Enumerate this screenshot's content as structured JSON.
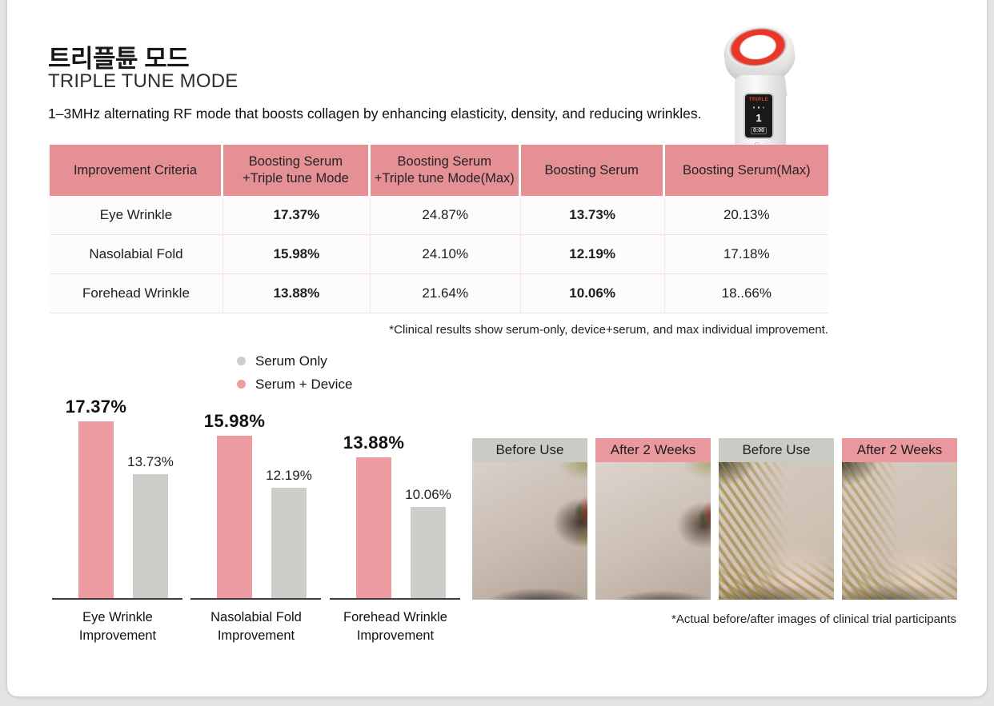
{
  "page": {
    "title_ko": "트리플튠 모드",
    "title_en": "TRIPLE TUNE MODE",
    "description": "1–3MHz alternating RF mode that boosts collagen by enhancing elasticity, density, and reducing wrinkles."
  },
  "device_screen": {
    "mode": "TRIPLE",
    "level": "1",
    "time": "0:00"
  },
  "table": {
    "headers": [
      "Improvement Criteria",
      "Boosting Serum\n+Triple tune Mode",
      "Boosting Serum\n+Triple tune Mode(Max)",
      "Boosting Serum",
      "Boosting Serum(Max)"
    ],
    "rows": [
      {
        "criteria": "Eye Wrinkle",
        "values": [
          "17.37%",
          "24.87%",
          "13.73%",
          "20.13%"
        ]
      },
      {
        "criteria": "Nasolabial Fold",
        "values": [
          "15.98%",
          "24.10%",
          "12.19%",
          "17.18%"
        ]
      },
      {
        "criteria": "Forehead Wrinkle",
        "values": [
          "13.88%",
          "21.64%",
          "10.06%",
          "18..66%"
        ]
      }
    ],
    "footnote": "*Clinical results show serum-only, device+serum, and max individual improvement."
  },
  "legend": {
    "serum_only": "Serum Only",
    "serum_device": "Serum + Device"
  },
  "chart_data": {
    "type": "bar",
    "title": "",
    "value_suffix": "%",
    "ylim": [
      0,
      18
    ],
    "grid": false,
    "legend_position": "top",
    "series": [
      {
        "name": "Serum + Device",
        "color": "#EE9CA1",
        "values": [
          17.37,
          15.98,
          13.88
        ]
      },
      {
        "name": "Serum Only",
        "color": "#CDCDCA",
        "values": [
          13.73,
          12.19,
          10.06
        ]
      }
    ],
    "categories": [
      "Eye Wrinkle\nImprovement",
      "Nasolabial Fold\nImprovement",
      "Forehead Wrinkle\nImprovement"
    ],
    "groups": [
      {
        "category": "Eye Wrinkle\nImprovement",
        "serum_device": 17.37,
        "serum_only": 13.73
      },
      {
        "category": "Nasolabial Fold\nImprovement",
        "serum_device": 15.98,
        "serum_only": 12.19
      },
      {
        "category": "Forehead Wrinkle\nImprovement",
        "serum_device": 13.88,
        "serum_only": 10.06
      }
    ]
  },
  "photos": {
    "panels": [
      {
        "label": "Before Use",
        "kind": "before"
      },
      {
        "label": "After 2 Weeks",
        "kind": "after"
      },
      {
        "label": "Before Use",
        "kind": "before"
      },
      {
        "label": "After 2 Weeks",
        "kind": "after"
      }
    ],
    "footnote": "*Actual before/after images of clinical trial participants"
  },
  "colors": {
    "pink_header": "#E59095",
    "pink_bar": "#EE9CA1",
    "gray_bar": "#CDCDCA",
    "photo_pink": "#E9999E",
    "photo_gray": "#C9CBC7"
  }
}
